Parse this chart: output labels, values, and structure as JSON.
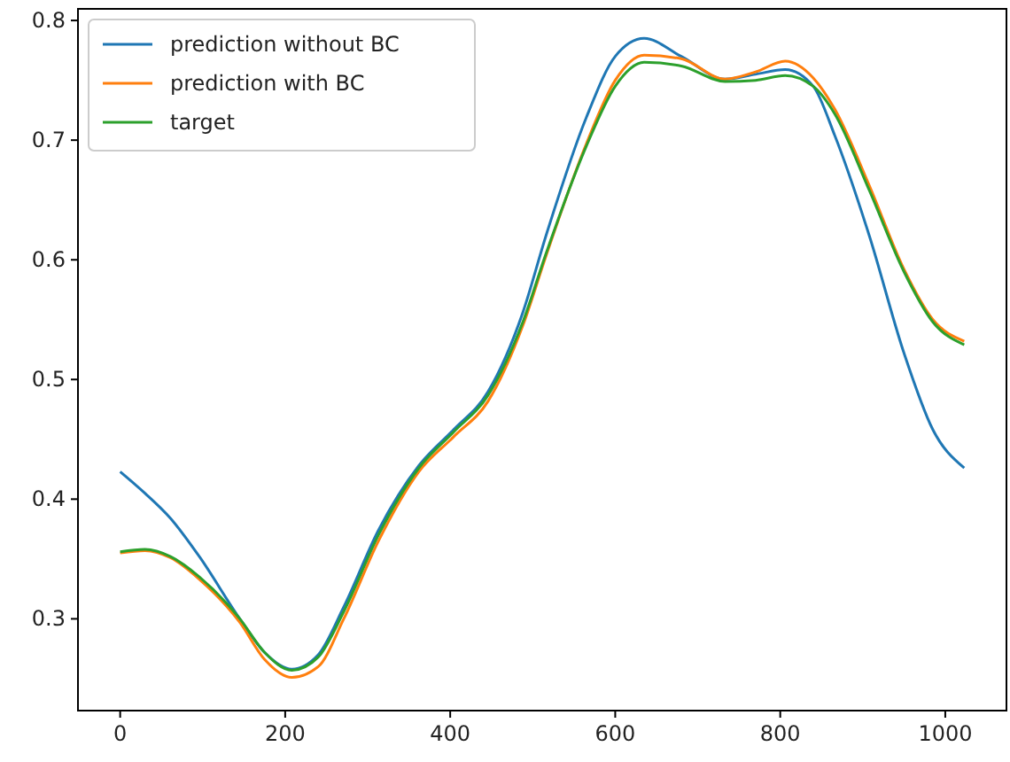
{
  "chart_data": {
    "type": "line",
    "x": [
      0,
      30,
      61,
      96,
      145,
      175,
      208,
      240,
      271,
      313,
      362,
      404,
      446,
      488,
      516,
      565,
      600,
      635,
      680,
      733,
      770,
      806,
      840,
      866,
      908,
      950,
      985,
      1023
    ],
    "series": [
      {
        "name": "prediction without BC",
        "color": "#1f77b4",
        "values": [
          0.423,
          0.405,
          0.384,
          0.352,
          0.3,
          0.272,
          0.258,
          0.27,
          0.31,
          0.374,
          0.428,
          0.458,
          0.49,
          0.556,
          0.62,
          0.719,
          0.77,
          0.785,
          0.77,
          0.751,
          0.755,
          0.759,
          0.745,
          0.704,
          0.62,
          0.522,
          0.458,
          0.426
        ]
      },
      {
        "name": "prediction with BC",
        "color": "#ff7f0e",
        "values": [
          0.355,
          0.357,
          0.351,
          0.333,
          0.297,
          0.266,
          0.251,
          0.26,
          0.3,
          0.365,
          0.423,
          0.452,
          0.482,
          0.545,
          0.603,
          0.697,
          0.75,
          0.771,
          0.768,
          0.751,
          0.757,
          0.766,
          0.752,
          0.726,
          0.662,
          0.592,
          0.55,
          0.532
        ]
      },
      {
        "name": "target",
        "color": "#2ca02c",
        "values": [
          0.356,
          0.358,
          0.352,
          0.335,
          0.3,
          0.272,
          0.257,
          0.268,
          0.306,
          0.37,
          0.426,
          0.456,
          0.487,
          0.548,
          0.605,
          0.695,
          0.745,
          0.765,
          0.762,
          0.749,
          0.75,
          0.754,
          0.745,
          0.722,
          0.658,
          0.59,
          0.548,
          0.529
        ]
      }
    ],
    "xlim": [
      -51.15,
      1074.15
    ],
    "xticks": [
      0,
      200,
      400,
      600,
      800,
      1000
    ],
    "ylim": [
      0.2233,
      0.8097
    ],
    "yticks": [
      0.3,
      0.4,
      0.5,
      0.6,
      0.7,
      0.8
    ],
    "legend": "top left",
    "grid": false,
    "marker": "none",
    "line_style": "solid"
  }
}
